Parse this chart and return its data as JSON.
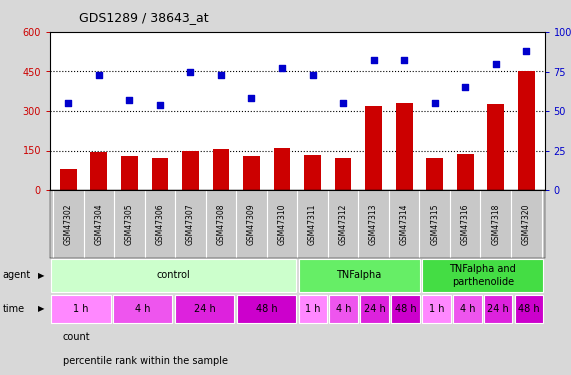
{
  "title": "GDS1289 / 38643_at",
  "samples": [
    "GSM47302",
    "GSM47304",
    "GSM47305",
    "GSM47306",
    "GSM47307",
    "GSM47308",
    "GSM47309",
    "GSM47310",
    "GSM47311",
    "GSM47312",
    "GSM47313",
    "GSM47314",
    "GSM47315",
    "GSM47316",
    "GSM47318",
    "GSM47320"
  ],
  "counts": [
    80,
    145,
    130,
    120,
    148,
    155,
    128,
    160,
    133,
    120,
    320,
    330,
    120,
    138,
    325,
    450
  ],
  "percentiles": [
    55,
    73,
    57,
    54,
    75,
    73,
    58,
    77,
    73,
    55,
    82,
    82,
    55,
    65,
    80,
    88
  ],
  "bar_color": "#cc0000",
  "dot_color": "#0000cc",
  "ylim_left": [
    0,
    600
  ],
  "ylim_right": [
    0,
    100
  ],
  "yticks_left": [
    0,
    150,
    300,
    450,
    600
  ],
  "yticks_right": [
    0,
    25,
    50,
    75,
    100
  ],
  "agent_groups": [
    {
      "label": "control",
      "start": 0,
      "end": 8,
      "color": "#ccffcc"
    },
    {
      "label": "TNFalpha",
      "start": 8,
      "end": 12,
      "color": "#66ee66"
    },
    {
      "label": "TNFalpha and\nparthenolide",
      "start": 12,
      "end": 16,
      "color": "#44dd44"
    }
  ],
  "time_groups": [
    {
      "label": "1 h",
      "start": 0,
      "end": 2,
      "color": "#ff88ff"
    },
    {
      "label": "4 h",
      "start": 2,
      "end": 4,
      "color": "#ee55ee"
    },
    {
      "label": "24 h",
      "start": 4,
      "end": 6,
      "color": "#dd22dd"
    },
    {
      "label": "48 h",
      "start": 6,
      "end": 8,
      "color": "#cc00cc"
    },
    {
      "label": "1 h",
      "start": 8,
      "end": 9,
      "color": "#ff88ff"
    },
    {
      "label": "4 h",
      "start": 9,
      "end": 10,
      "color": "#ee55ee"
    },
    {
      "label": "24 h",
      "start": 10,
      "end": 11,
      "color": "#dd22dd"
    },
    {
      "label": "48 h",
      "start": 11,
      "end": 12,
      "color": "#cc00cc"
    },
    {
      "label": "1 h",
      "start": 12,
      "end": 13,
      "color": "#ff88ff"
    },
    {
      "label": "4 h",
      "start": 13,
      "end": 14,
      "color": "#ee55ee"
    },
    {
      "label": "24 h",
      "start": 14,
      "end": 15,
      "color": "#dd22dd"
    },
    {
      "label": "48 h",
      "start": 15,
      "end": 16,
      "color": "#cc00cc"
    }
  ],
  "legend_items": [
    {
      "label": "count",
      "color": "#cc0000"
    },
    {
      "label": "percentile rank within the sample",
      "color": "#0000cc"
    }
  ],
  "bg_color": "#d8d8d8",
  "plot_bg": "#ffffff",
  "label_bg": "#c8c8c8"
}
